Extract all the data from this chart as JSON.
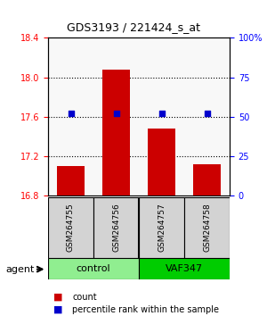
{
  "title": "GDS3193 / 221424_s_at",
  "samples": [
    "GSM264755",
    "GSM264756",
    "GSM264757",
    "GSM264758"
  ],
  "groups": [
    "control",
    "control",
    "VAF347",
    "VAF347"
  ],
  "group_labels": [
    "control",
    "VAF347"
  ],
  "group_colors": [
    "#90EE90",
    "#00CC00"
  ],
  "count_values": [
    17.1,
    18.08,
    17.48,
    17.12
  ],
  "percentile_values": [
    52,
    52,
    52,
    52
  ],
  "ylim_left": [
    16.8,
    18.4
  ],
  "ylim_right": [
    0,
    100
  ],
  "yticks_left": [
    16.8,
    17.2,
    17.6,
    18.0,
    18.4
  ],
  "yticks_right": [
    0,
    25,
    50,
    75,
    100
  ],
  "ytick_labels_right": [
    "0",
    "25",
    "50",
    "75",
    "100%"
  ],
  "bar_color": "#CC0000",
  "dot_color": "#0000CC",
  "background_color": "#ffffff",
  "plot_bg_color": "#ffffff",
  "grid_color": "#000000",
  "bar_width": 0.6,
  "bar_bottom": 16.8,
  "legend_count_label": "count",
  "legend_pct_label": "percentile rank within the sample"
}
